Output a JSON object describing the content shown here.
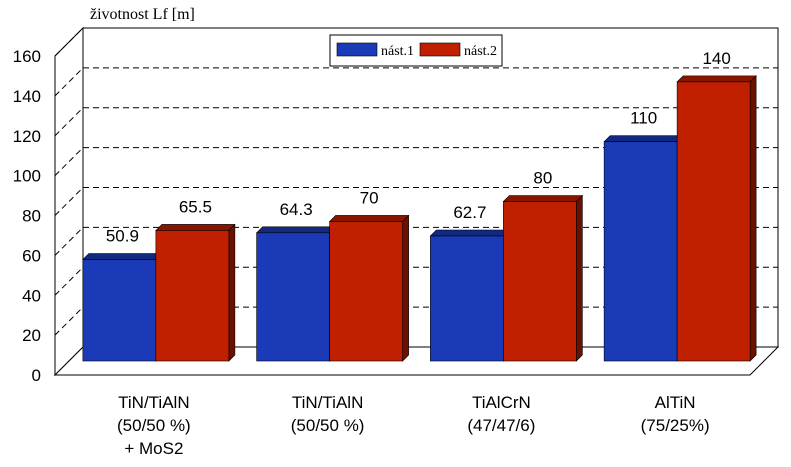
{
  "chart_data": {
    "type": "bar",
    "ylabel": "životnost Lf [m]",
    "xlabel": "",
    "ylim": [
      0,
      160
    ],
    "yticks": [
      0,
      20,
      40,
      60,
      80,
      100,
      120,
      140,
      160
    ],
    "grid": true,
    "legend_position": "top-center",
    "categories": [
      [
        "TiN/TiAlN",
        "(50/50 %)",
        "+ MoS2"
      ],
      [
        "TiN/TiAlN",
        "(50/50 %)"
      ],
      [
        "TiAlCrN",
        "(47/47/6)"
      ],
      [
        "AlTiN",
        "(75/25%)"
      ]
    ],
    "series": [
      {
        "name": "nást.1",
        "color": "#1a3ab8",
        "values": [
          50.9,
          64.3,
          62.7,
          110
        ]
      },
      {
        "name": "nást.2",
        "color": "#c01f00",
        "values": [
          65.5,
          70,
          80,
          140
        ]
      }
    ]
  }
}
